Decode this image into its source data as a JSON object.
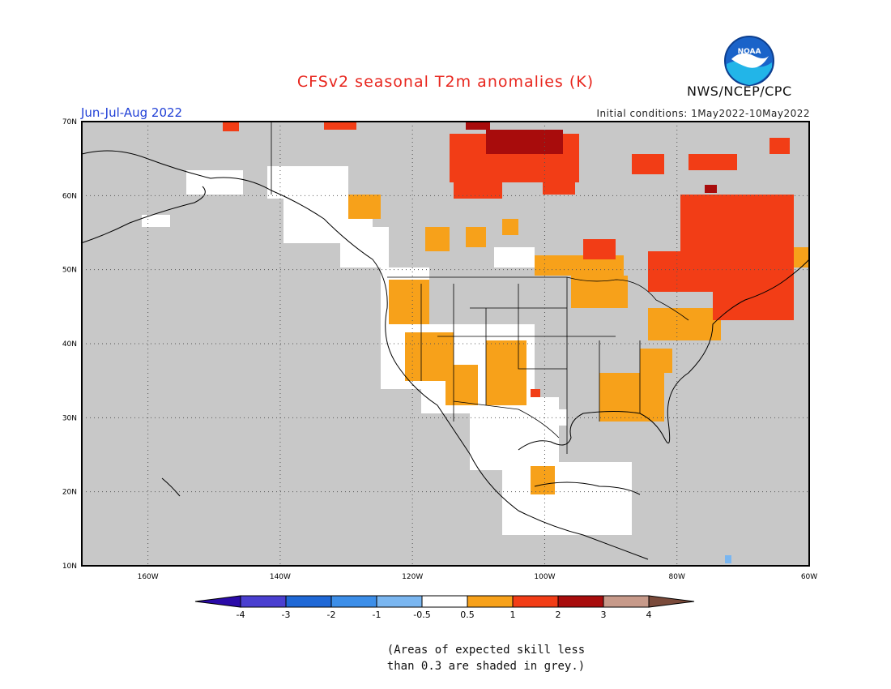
{
  "title": "CFSv2 seasonal T2m anomalies (K)",
  "period": "Jun-Jul-Aug 2022",
  "initial_conditions": "Initial conditions: 1May2022-10May2022",
  "agency": "NWS/NCEP/CPC",
  "logo_text": "NOAA",
  "lat_labels": [
    "70N",
    "60N",
    "50N",
    "40N",
    "30N",
    "20N",
    "10N"
  ],
  "lon_labels": [
    "160W",
    "140W",
    "120W",
    "100W",
    "80W",
    "60W"
  ],
  "colorbar": {
    "labels": [
      "-4",
      "-3",
      "-2",
      "-1",
      "-0.5",
      "0.5",
      "1",
      "2",
      "3",
      "4"
    ],
    "colors": [
      "#2a0aa8",
      "#4a3fd0",
      "#1f68d6",
      "#3c8ee8",
      "#7ab6f0",
      "#ffffff",
      "#f7a11a",
      "#f23d16",
      "#a80c0c",
      "#c79a8a",
      "#7a4a3a"
    ]
  },
  "note_line1": "(Areas of expected skill less",
  "note_line2": "than 0.3 are shaded in grey.)",
  "colors": {
    "grey": "#c8c8c8",
    "warm1": "#f7a11a",
    "warm2": "#f23d16",
    "warm3": "#a80c0c",
    "neutral": "#ffffff"
  }
}
